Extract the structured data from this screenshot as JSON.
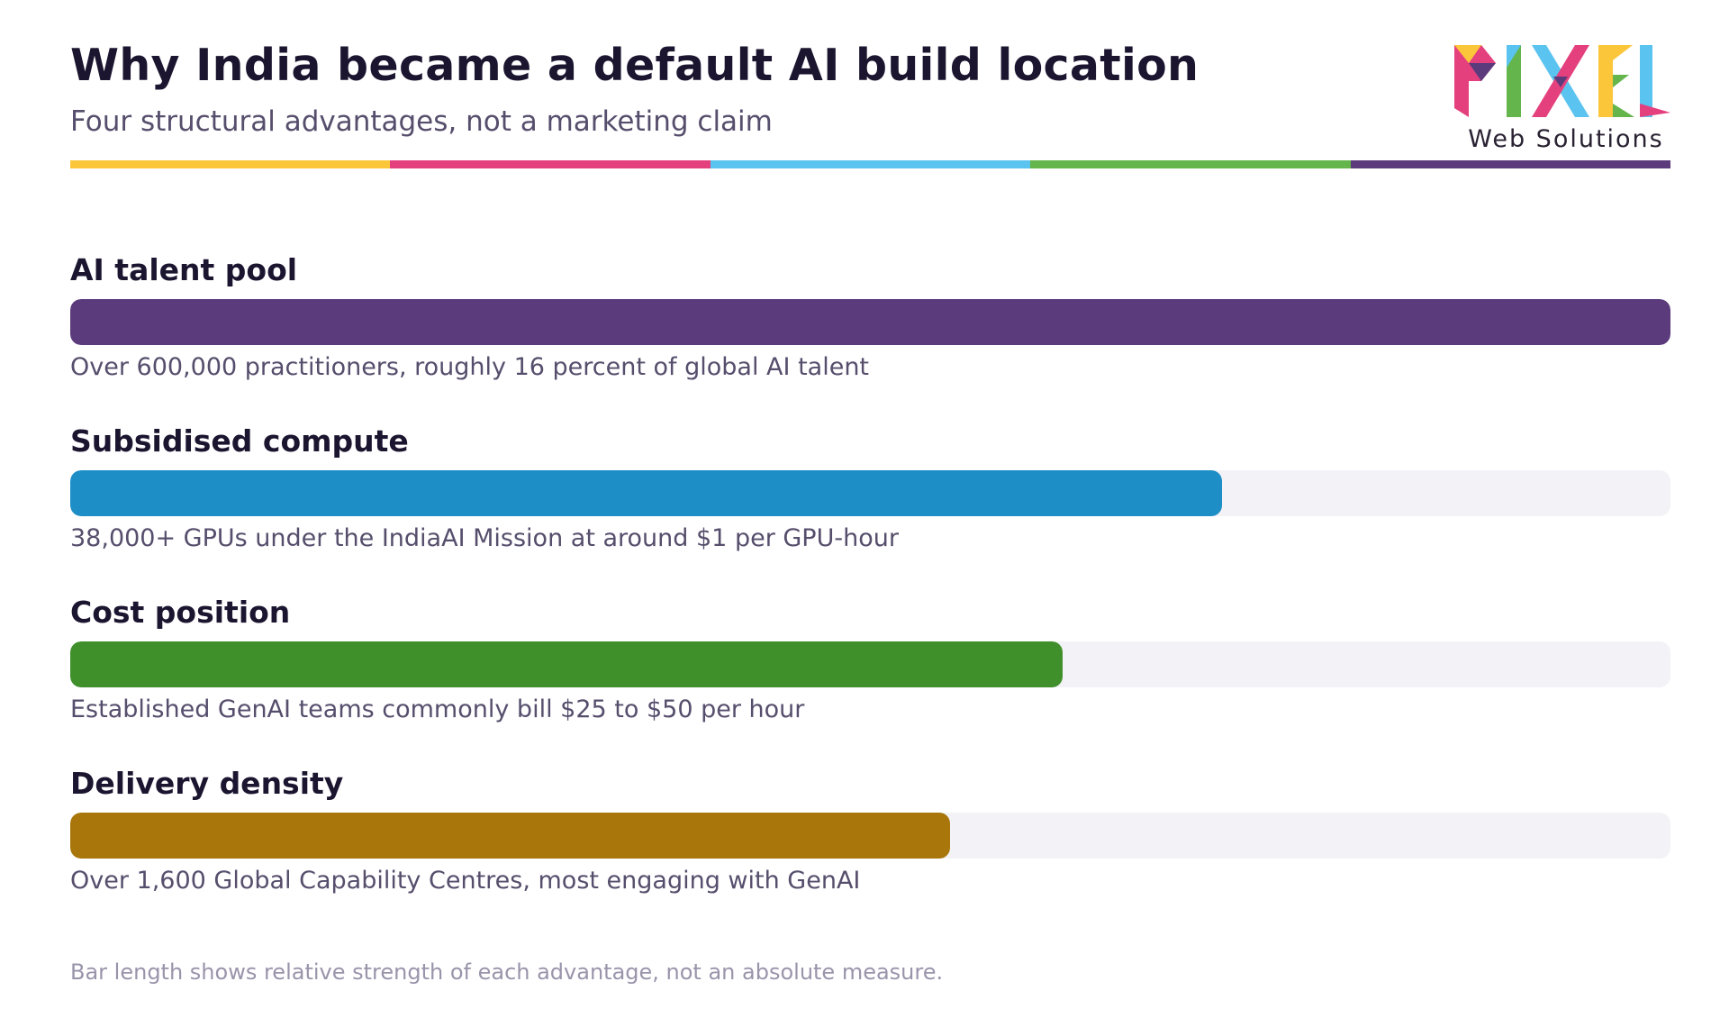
{
  "header": {
    "title": "Why India became a default AI build location",
    "subtitle": "Four structural advantages, not a marketing claim"
  },
  "logo": {
    "wordmark": "PIXEL",
    "tagline": "Web Solutions",
    "colors": [
      "#fcc63a",
      "#e5407e",
      "#5bc3ef",
      "#64b64c",
      "#5b3b7c"
    ]
  },
  "stripe_colors": [
    "#fcc63a",
    "#e5407e",
    "#5bc3ef",
    "#64b64c",
    "#5b3b7c"
  ],
  "chart_data": {
    "type": "bar",
    "orientation": "horizontal",
    "scale_max": 1.0,
    "items": [
      {
        "label": "AI talent pool",
        "value": 1.0,
        "color": "#5b3b7c",
        "description": "Over 600,000 practitioners, roughly 16 percent of global AI talent"
      },
      {
        "label": "Subsidised compute",
        "value": 0.72,
        "color": "#1e8fc6",
        "description": "38,000+ GPUs under the IndiaAI Mission at around $1 per GPU-hour"
      },
      {
        "label": "Cost position",
        "value": 0.62,
        "color": "#3f8f2b",
        "description": "Established GenAI teams commonly bill $25 to $50 per hour"
      },
      {
        "label": "Delivery density",
        "value": 0.55,
        "color": "#a8760a",
        "description": "Over 1,600 Global Capability Centres, most engaging with GenAI"
      }
    ],
    "footnote": "Bar length shows relative strength of each advantage, not an absolute measure."
  }
}
